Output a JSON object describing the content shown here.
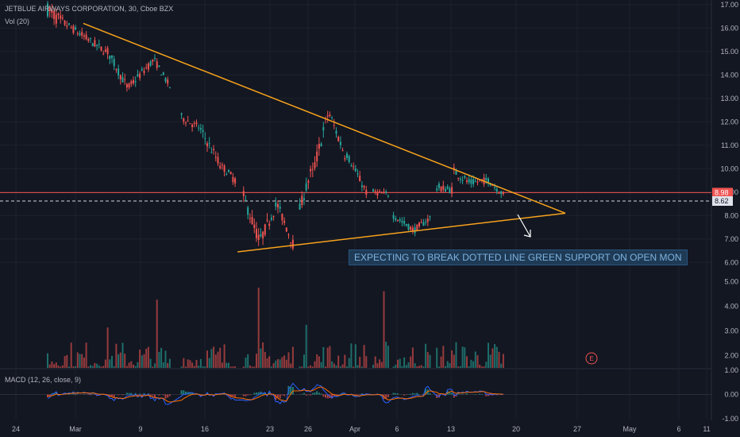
{
  "header": {
    "symbol_line": "JETBLUE AIRWAYS CORPORATION, 30, Cboe BZX",
    "volume_label": "Vol (20)",
    "macd_label": "MACD (12, 26, close, 9)"
  },
  "annotation": {
    "text": "EXPECTING TO BREAK DOTTED LINE GREEN SUPPORT ON OPEN MON",
    "earnings_marker": "E"
  },
  "colors": {
    "background": "#131722",
    "up": "#26a69a",
    "down": "#ef5350",
    "trendline": "#f7a21b",
    "macd_line": "#2962ff",
    "signal_line": "#ff6d00",
    "annotation_bg": "#1e3a55",
    "annotation_text": "#7fb3e0"
  },
  "chart_data": [
    {
      "type": "candlestick",
      "title": "JETBLUE AIRWAYS CORPORATION, 30, Cboe BZX",
      "x_ticks": [
        "24",
        "Mar",
        "9",
        "16",
        "23",
        "26",
        "Apr",
        "6",
        "13",
        "20",
        "27",
        "May",
        "6",
        "11"
      ],
      "y_ticks": [
        "17.00",
        "16.00",
        "15.00",
        "14.00",
        "13.00",
        "12.00",
        "11.00",
        "10.00",
        "9.00",
        "8.00",
        "7.00",
        "6.00"
      ],
      "ylim": [
        5.5,
        17.2
      ],
      "price_labels": [
        {
          "value": 8.98,
          "label": "8.98",
          "color": "#ef5350"
        },
        {
          "value": 8.62,
          "label": "8.62",
          "color": "#131722"
        }
      ],
      "trendlines": [
        {
          "name": "resistance",
          "from": [
            0,
            16.2
          ],
          "to": [
            1.0,
            8.1
          ]
        },
        {
          "name": "support",
          "from": [
            0.32,
            6.45
          ],
          "to": [
            1.0,
            8.1
          ]
        }
      ],
      "horizontal_lines": [
        {
          "name": "resistance-level",
          "value": 8.98,
          "style": "solid"
        },
        {
          "name": "support-dotted",
          "value": 8.62,
          "style": "dashed"
        }
      ],
      "segments": [
        {
          "start": 16.8,
          "end": 16.2,
          "count": 8,
          "vol": 0.6
        },
        {
          "start": 16.2,
          "end": 15.0,
          "count": 20,
          "vol": 0.35
        },
        {
          "start": 15.0,
          "end": 13.5,
          "count": 10,
          "vol": 0.4
        },
        {
          "start": 13.5,
          "end": 14.6,
          "count": 12,
          "vol": 0.35
        },
        {
          "start": 14.6,
          "end": 13.5,
          "count": 8,
          "vol": 0.3
        },
        {
          "start": 12.2,
          "end": 11.8,
          "count": 8,
          "vol": 0.35
        },
        {
          "start": 11.8,
          "end": 10.0,
          "count": 12,
          "vol": 0.45
        },
        {
          "start": 10.0,
          "end": 9.5,
          "count": 6,
          "vol": 0.35
        },
        {
          "start": 8.8,
          "end": 7.0,
          "count": 8,
          "vol": 0.55
        },
        {
          "start": 7.0,
          "end": 8.4,
          "count": 8,
          "vol": 0.5
        },
        {
          "start": 8.4,
          "end": 6.8,
          "count": 8,
          "vol": 0.45
        },
        {
          "start": 8.3,
          "end": 9.8,
          "count": 6,
          "vol": 0.5
        },
        {
          "start": 9.8,
          "end": 12.3,
          "count": 8,
          "vol": 0.6
        },
        {
          "start": 12.3,
          "end": 10.6,
          "count": 8,
          "vol": 0.45
        },
        {
          "start": 10.6,
          "end": 9.0,
          "count": 10,
          "vol": 0.35
        },
        {
          "start": 9.0,
          "end": 8.9,
          "count": 8,
          "vol": 0.25
        },
        {
          "start": 8.0,
          "end": 7.4,
          "count": 10,
          "vol": 0.3
        },
        {
          "start": 7.4,
          "end": 7.9,
          "count": 8,
          "vol": 0.3
        },
        {
          "start": 9.2,
          "end": 9.1,
          "count": 8,
          "vol": 0.35
        },
        {
          "start": 9.9,
          "end": 9.4,
          "count": 8,
          "vol": 0.4
        },
        {
          "start": 9.4,
          "end": 9.5,
          "count": 8,
          "vol": 0.3
        },
        {
          "start": 9.5,
          "end": 8.9,
          "count": 8,
          "vol": 0.3
        }
      ]
    },
    {
      "type": "bar",
      "name": "Vol (20)",
      "y_ticks": [
        "5.00",
        "4.00",
        "3.00",
        "2.00"
      ],
      "ylim": [
        1.5,
        5.3
      ]
    },
    {
      "type": "line",
      "name": "MACD (12, 26, close, 9)",
      "y_ticks": [
        "1.00",
        "0.00",
        "-1.00"
      ],
      "ylim": [
        -1.0,
        1.0
      ]
    }
  ]
}
